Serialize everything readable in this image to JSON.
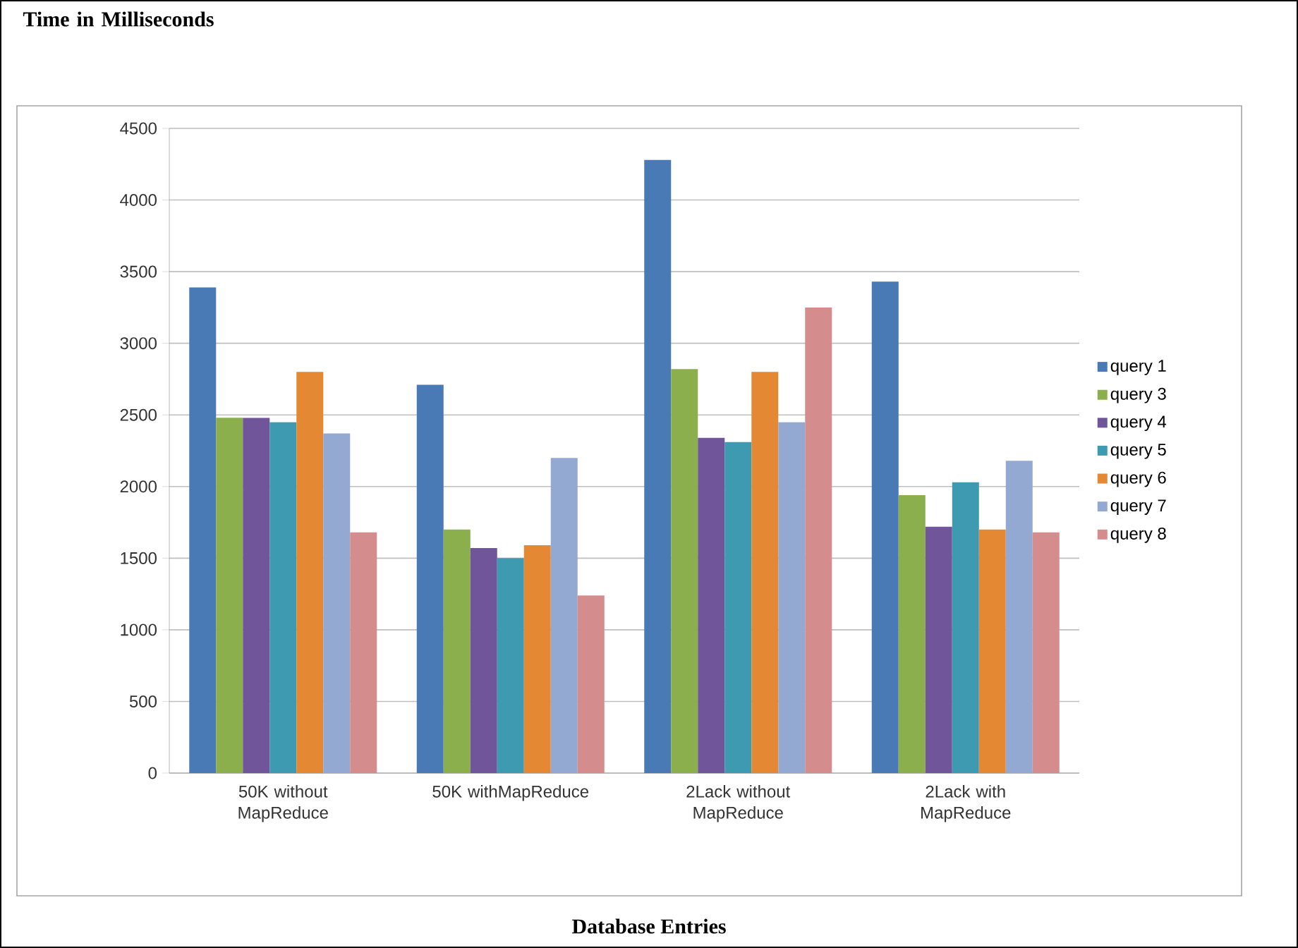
{
  "chart_data": {
    "type": "bar",
    "title": "Time in Milliseconds",
    "xlabel": "Database Entries",
    "categories": [
      "50K without MapReduce",
      "50K withMapReduce",
      "2Lack without MapReduce",
      "2Lack with MapReduce"
    ],
    "series": [
      {
        "name": "query 1",
        "color": "#4a7ab5",
        "values": [
          3390,
          2710,
          4280,
          3430
        ]
      },
      {
        "name": "query 3",
        "color": "#8caf4e",
        "values": [
          2480,
          1700,
          2820,
          1940
        ]
      },
      {
        "name": "query 4",
        "color": "#70559a",
        "values": [
          2480,
          1570,
          2340,
          1720
        ]
      },
      {
        "name": "query 5",
        "color": "#3e9ab0",
        "values": [
          2450,
          1500,
          2310,
          2030
        ]
      },
      {
        "name": "query 6",
        "color": "#e48833",
        "values": [
          2800,
          1590,
          2800,
          1700
        ]
      },
      {
        "name": "query 7",
        "color": "#93a9d1",
        "values": [
          2370,
          2200,
          2450,
          2180
        ]
      },
      {
        "name": "query 8",
        "color": "#d48c8d",
        "values": [
          1680,
          1240,
          3250,
          1680
        ]
      }
    ],
    "ylim": [
      0,
      4500
    ],
    "yticks": [
      0,
      500,
      1000,
      1500,
      2000,
      2500,
      3000,
      3500,
      4000,
      4500
    ],
    "grid": "y",
    "legend": "right"
  }
}
